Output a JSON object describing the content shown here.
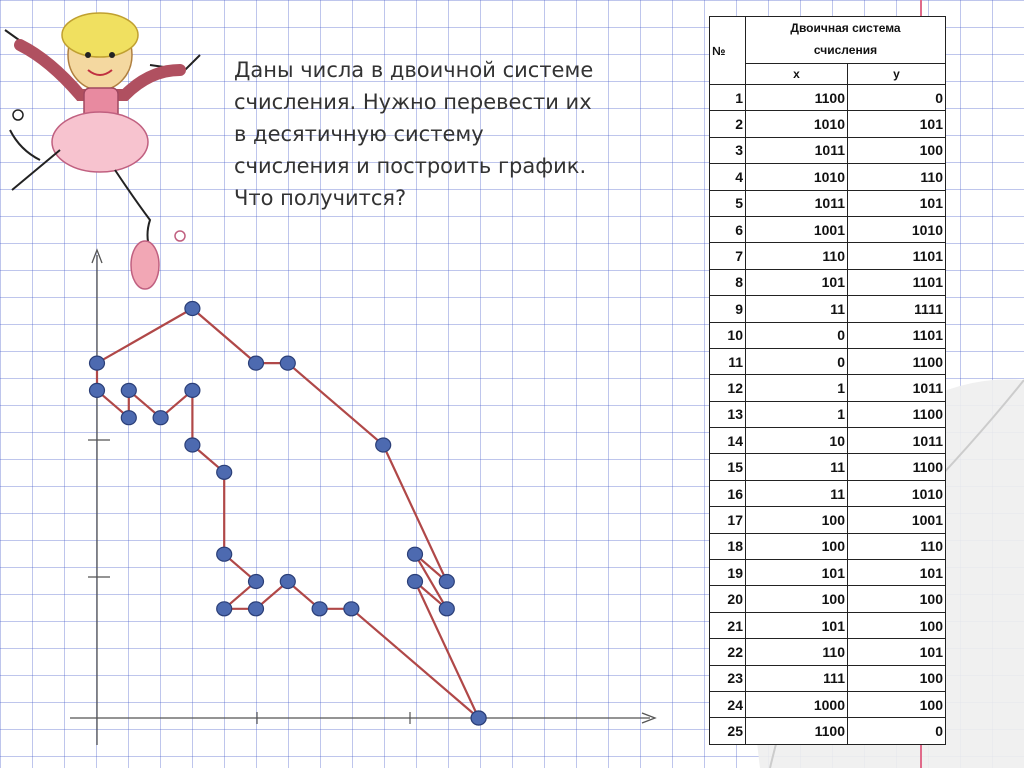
{
  "task_text": "Даны числа в двоичной системе\nсчисления. Нужно перевести их\nв десятичную систему\nсчисления и построить график.\nЧто получится?",
  "table": {
    "col_num": "№",
    "col_group": "Двоичная система\nсчисления",
    "col_x": "x",
    "col_y": "y",
    "rows": [
      {
        "n": "1",
        "x": "1100",
        "y": "0"
      },
      {
        "n": "2",
        "x": "1010",
        "y": "101"
      },
      {
        "n": "3",
        "x": "1011",
        "y": "100"
      },
      {
        "n": "4",
        "x": "1010",
        "y": "110"
      },
      {
        "n": "5",
        "x": "1011",
        "y": "101"
      },
      {
        "n": "6",
        "x": "1001",
        "y": "1010"
      },
      {
        "n": "7",
        "x": "110",
        "y": "1101"
      },
      {
        "n": "8",
        "x": "101",
        "y": "1101"
      },
      {
        "n": "9",
        "x": "11",
        "y": "1111"
      },
      {
        "n": "10",
        "x": "0",
        "y": "1101"
      },
      {
        "n": "11",
        "x": "0",
        "y": "1100"
      },
      {
        "n": "12",
        "x": "1",
        "y": "1011"
      },
      {
        "n": "13",
        "x": "1",
        "y": "1100"
      },
      {
        "n": "14",
        "x": "10",
        "y": "1011"
      },
      {
        "n": "15",
        "x": "11",
        "y": "1100"
      },
      {
        "n": "16",
        "x": "11",
        "y": "1010"
      },
      {
        "n": "17",
        "x": "100",
        "y": "1001"
      },
      {
        "n": "18",
        "x": "100",
        "y": "110"
      },
      {
        "n": "19",
        "x": "101",
        "y": "101"
      },
      {
        "n": "20",
        "x": "100",
        "y": "100"
      },
      {
        "n": "21",
        "x": "101",
        "y": "100"
      },
      {
        "n": "22",
        "x": "110",
        "y": "101"
      },
      {
        "n": "23",
        "x": "111",
        "y": "100"
      },
      {
        "n": "24",
        "x": "1000",
        "y": "100"
      },
      {
        "n": "25",
        "x": "1100",
        "y": "0"
      }
    ]
  },
  "chart_data": {
    "type": "line",
    "x": [
      12,
      10,
      11,
      10,
      11,
      9,
      6,
      5,
      3,
      0,
      0,
      1,
      1,
      2,
      3,
      3,
      4,
      4,
      5,
      4,
      5,
      6,
      7,
      8,
      12
    ],
    "y": [
      0,
      5,
      4,
      6,
      5,
      10,
      13,
      13,
      15,
      13,
      12,
      11,
      12,
      11,
      12,
      10,
      9,
      6,
      5,
      4,
      4,
      5,
      4,
      4,
      0
    ],
    "xlim": [
      0,
      17
    ],
    "ylim": [
      0,
      17
    ],
    "grid": true,
    "line_color": "#b04848",
    "marker_color": "#4d6ab0",
    "marker_edge": "#2b3f78",
    "axis_color": "#555555"
  },
  "colors": {
    "paper_grid": "#5a6fd0",
    "margin_line": "#e06a8a"
  },
  "decorations": {
    "ballerina": "ballerina-illustration",
    "page_curl": "page-curl-corner"
  }
}
